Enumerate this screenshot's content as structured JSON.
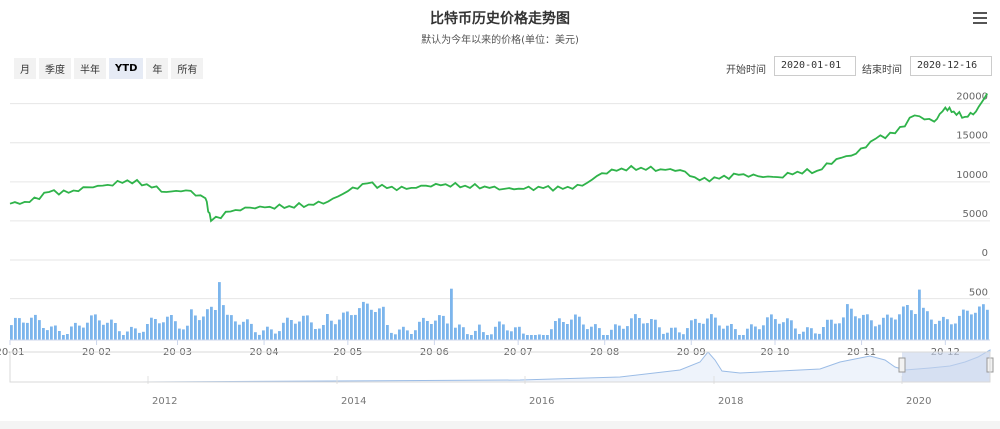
{
  "title": "比特币历史价格走势图",
  "subtitle": "默认为今年以来的价格(单位：美元)",
  "range_buttons": [
    "月",
    "季度",
    "半年",
    "YTD",
    "年",
    "所有"
  ],
  "active_range": "YTD",
  "start_label": "开始时间",
  "start_value": "2020-01-01",
  "end_label": "结束时间",
  "end_value": "2020-12-16",
  "menu_icon": "hamburger-menu-icon",
  "colors": {
    "price_line": "#2fb34a",
    "volume_bar": "#7cb5ec",
    "navigator_fill": "#c7d4ec",
    "navigator_line": "#9bbce6",
    "grid": "#e6e6e6"
  },
  "chart_data": {
    "type": "line",
    "price": {
      "x": [
        "2020-01-01",
        "2020-01-08",
        "2020-01-15",
        "2020-01-22",
        "2020-01-29",
        "2020-02-05",
        "2020-02-12",
        "2020-02-19",
        "2020-02-26",
        "2020-03-04",
        "2020-03-11",
        "2020-03-13",
        "2020-03-20",
        "2020-03-27",
        "2020-04-03",
        "2020-04-10",
        "2020-04-17",
        "2020-04-24",
        "2020-05-01",
        "2020-05-08",
        "2020-05-15",
        "2020-05-22",
        "2020-05-29",
        "2020-06-05",
        "2020-06-12",
        "2020-06-19",
        "2020-06-26",
        "2020-07-03",
        "2020-07-10",
        "2020-07-17",
        "2020-07-24",
        "2020-07-31",
        "2020-08-07",
        "2020-08-14",
        "2020-08-21",
        "2020-08-28",
        "2020-09-04",
        "2020-09-11",
        "2020-09-18",
        "2020-09-25",
        "2020-10-02",
        "2020-10-09",
        "2020-10-16",
        "2020-10-23",
        "2020-10-30",
        "2020-11-06",
        "2020-11-13",
        "2020-11-20",
        "2020-11-27",
        "2020-12-01",
        "2020-12-04",
        "2020-12-08",
        "2020-12-12",
        "2020-12-16"
      ],
      "y": [
        7200,
        7400,
        8700,
        8600,
        9300,
        9600,
        10200,
        9700,
        8700,
        8900,
        7900,
        5000,
        6200,
        6700,
        6800,
        6900,
        7100,
        7500,
        8800,
        9800,
        9200,
        9100,
        9500,
        9700,
        9500,
        9400,
        9100,
        9100,
        9200,
        9100,
        9500,
        11100,
        11700,
        11800,
        11600,
        11500,
        10200,
        10400,
        10900,
        10700,
        10600,
        11300,
        11400,
        12900,
        13600,
        15500,
        16200,
        18500,
        17700,
        19500,
        19000,
        18300,
        19000,
        21300
      ]
    },
    "volume": {
      "y_ticks": [
        0,
        500
      ],
      "note": "approximate daily volume bars, typical 150-300, peaks near 500-700"
    },
    "y_ticks": [
      0,
      5000,
      10000,
      15000,
      20000
    ],
    "ylim": [
      0,
      22000
    ],
    "x_tick_labels": [
      "20-01",
      "20-02",
      "20-03",
      "20-04",
      "20-05",
      "20-06",
      "20-07",
      "20-08",
      "20-09",
      "20-10",
      "20-11",
      "20-12"
    ],
    "navigator_labels": [
      "2012",
      "2014",
      "2016",
      "2018",
      "2020"
    ],
    "grid": true
  }
}
